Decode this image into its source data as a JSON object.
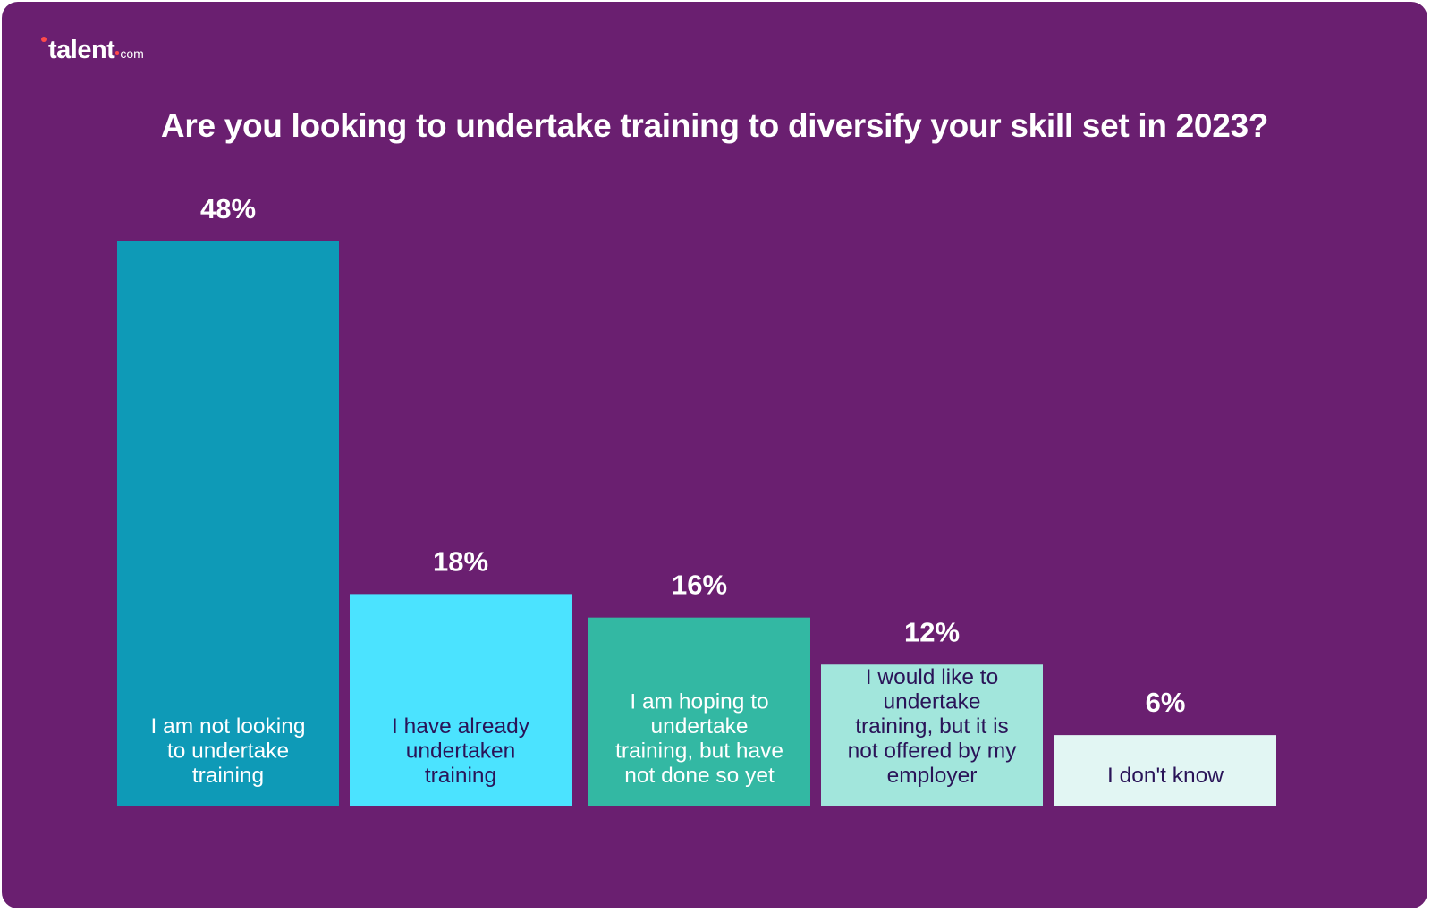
{
  "logo": {
    "text": "talent",
    "tld": "com",
    "accent_color": "#ff4a4a"
  },
  "chart_data": {
    "type": "bar",
    "title": "Are you looking to undertake training to diversify your skill set in 2023?",
    "categories": [
      "I am not looking to undertake training",
      "I have already undertaken training",
      "I am hoping to undertake training, but have not done so yet",
      "I would like to undertake training, but it is not offered by my employer",
      "I don't know"
    ],
    "category_lines": [
      [
        "I am not looking",
        "to undertake",
        "training"
      ],
      [
        "I have already",
        "undertaken",
        "training"
      ],
      [
        "I am hoping to",
        "undertake",
        "training, but have",
        "not done so yet"
      ],
      [
        "I would like to",
        "undertake",
        "training, but it is",
        "not offered by my",
        "employer"
      ],
      [
        "I don't know"
      ]
    ],
    "values": [
      48,
      18,
      16,
      12,
      6
    ],
    "value_labels": [
      "48%",
      "18%",
      "16%",
      "12%",
      "6%"
    ],
    "unit": "%",
    "ylim": [
      0,
      48
    ],
    "grid": false,
    "colors": {
      "background": "#6a1f70",
      "bars": [
        "#0e9ab7",
        "#4be3ff",
        "#33b8a3",
        "#a2e6dc",
        "#e2f6f3"
      ],
      "bar_text": [
        "#ffffff",
        "#2a1458",
        "#ffffff",
        "#2a1458",
        "#2a1458"
      ],
      "value_text": "#ffffff"
    }
  }
}
